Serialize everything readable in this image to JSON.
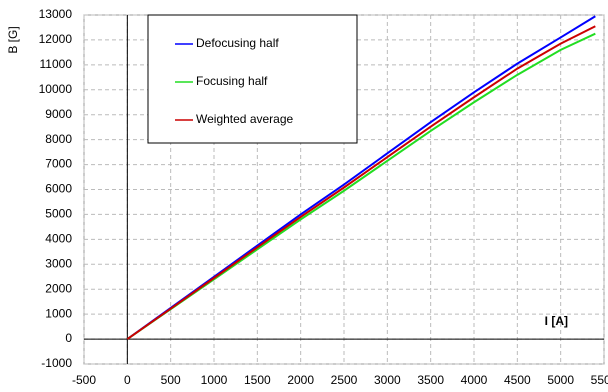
{
  "chart_data": {
    "type": "line",
    "x_label": "I [A]",
    "y_label": "B [G]",
    "x": [
      0,
      500,
      1000,
      1500,
      2000,
      2500,
      3000,
      3500,
      4000,
      4500,
      5000,
      5400
    ],
    "series": [
      {
        "name": "Defocusing half",
        "color": "#0000ff",
        "values": [
          0,
          1250,
          2500,
          3750,
          5000,
          6200,
          7450,
          8700,
          9900,
          11050,
          12100,
          12950
        ]
      },
      {
        "name": "Focusing half",
        "color": "#22dd22",
        "values": [
          0,
          1200,
          2400,
          3600,
          4800,
          5950,
          7150,
          8350,
          9500,
          10600,
          11600,
          12250
        ]
      },
      {
        "name": "Weighted average",
        "color": "#cc0000",
        "values": [
          0,
          1220,
          2450,
          3680,
          4900,
          6080,
          7300,
          8520,
          9700,
          10850,
          11850,
          12550
        ]
      }
    ],
    "xlim": [
      -500,
      5500
    ],
    "xticks": [
      -500,
      0,
      500,
      1000,
      1500,
      2000,
      2500,
      3000,
      3500,
      4000,
      4500,
      5000,
      5500
    ],
    "ylim": [
      -1000,
      13000
    ],
    "yticks": [
      -1000,
      0,
      1000,
      2000,
      3000,
      4000,
      5000,
      6000,
      7000,
      8000,
      9000,
      10000,
      11000,
      12000,
      13000
    ],
    "grid": true,
    "legend_position": "upper left"
  }
}
